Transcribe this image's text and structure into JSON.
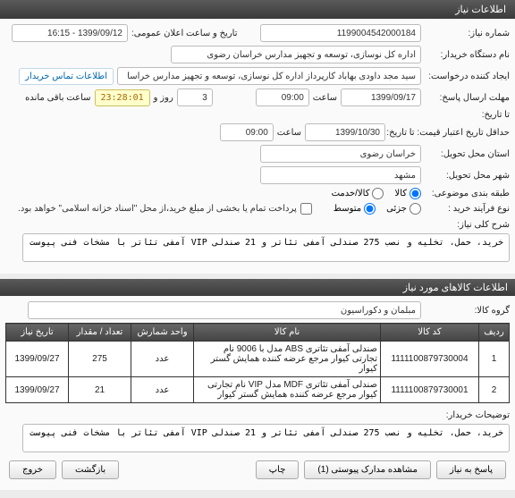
{
  "panel1": {
    "title": "اطلاعات نیاز"
  },
  "left_labels": {
    "need_no": "شماره نیاز:",
    "buyer_org": "نام دستگاه خریدار:",
    "creator": "ایجاد کننده درخواست:",
    "answer_deadline": "مهلت ارسال پاسخ:",
    "to_date": "تا تاریخ:",
    "min_valid": "حداقل تاریخ اعتبار قیمت: تا تاریخ:",
    "delivery_state": "استان محل تحویل:",
    "delivery_city": "شهر محل تحویل:",
    "classify": "طبقه بندی موضوعی:",
    "buy_process": "نوع فرآیند خرید :"
  },
  "right_labels": {
    "announce": "تاریخ و ساعت اعلان عمومی:",
    "contact_btn": "اطلاعات تماس خریدار",
    "day": "روز و",
    "hours_remain": "ساعت باقی مانده"
  },
  "values": {
    "need_no": "1199004542000184",
    "announce_dt": "1399/09/12 - 16:15",
    "buyer_org": "اداره کل نوسازی، توسعه و تجهیز مدارس خراسان رضوی",
    "creator": "سید مجد داودی بهاباد کارپرداز اداره کل نوسازی، توسعه و تجهیز مدارس خراسا",
    "answer_date": "1399/09/17",
    "saat1_lbl": "ساعت",
    "saat1_val": "09:00",
    "days_left": "3",
    "countdown": "23:28:01",
    "min_date": "1399/10/30",
    "saat2_val": "09:00",
    "state": "خراسان رضوی",
    "city": "مشهد"
  },
  "classify": {
    "opt_goods": "کالا",
    "opt_service": "کالا/خدمت"
  },
  "buy_process": {
    "opt_small": "جزئی",
    "opt_mid": "متوسط",
    "note": "پرداخت تمام یا بخشی از مبلغ خرید،از محل \"اسناد خزانه اسلامی\" خواهد بود."
  },
  "summary": {
    "label": "شرح کلی نیاز:",
    "text": "خرید، حمل، تخلیه و نصب 275 صندلی آمفی تئاتر و 21 صندلی VIP آمفی تئاتر با مشخات فنی پیوست"
  },
  "panel2": {
    "title": "اطلاعات کالاهای مورد نیاز"
  },
  "group": {
    "label": "گروه کالا:",
    "value": "مبلمان و دکوراسیون"
  },
  "table": {
    "headers": {
      "row": "ردیف",
      "code": "کد کالا",
      "name": "نام کالا",
      "unit": "واحد شمارش",
      "qty": "تعداد / مقدار",
      "date": "تاریخ نیاز"
    },
    "rows": [
      {
        "idx": "1",
        "code": "1111100879730004",
        "name": "صندلی آمفی تئاتری ABS مدل با 9006 نام تجارتی کیوار مرجع عرضه کننده همایش گستر کیوار",
        "unit": "عدد",
        "qty": "275",
        "date": "1399/09/27"
      },
      {
        "idx": "2",
        "code": "1111100879730001",
        "name": "صندلی آمفی تئاتری MDF مدل VIP نام تجارتی کیوار مرجع عرضه کننده همایش گستر کیوار",
        "unit": "عدد",
        "qty": "21",
        "date": "1399/09/27"
      }
    ]
  },
  "buyer_notes": {
    "label": "توضیحات خریدار:",
    "text": "خرید، حمل، تخلیه و نصب 275 صندلی آمفی تئاتر و 21 صندلی VIP آمفی تئاتر با مشخات فنی پیوست"
  },
  "buttons": {
    "reply": "پاسخ به نیاز",
    "attachments": "مشاهده مدارک پیوستی  (1)",
    "print": "چاپ",
    "back": "بازگشت",
    "exit": "خروج"
  },
  "watermark": "setadiran.ir"
}
